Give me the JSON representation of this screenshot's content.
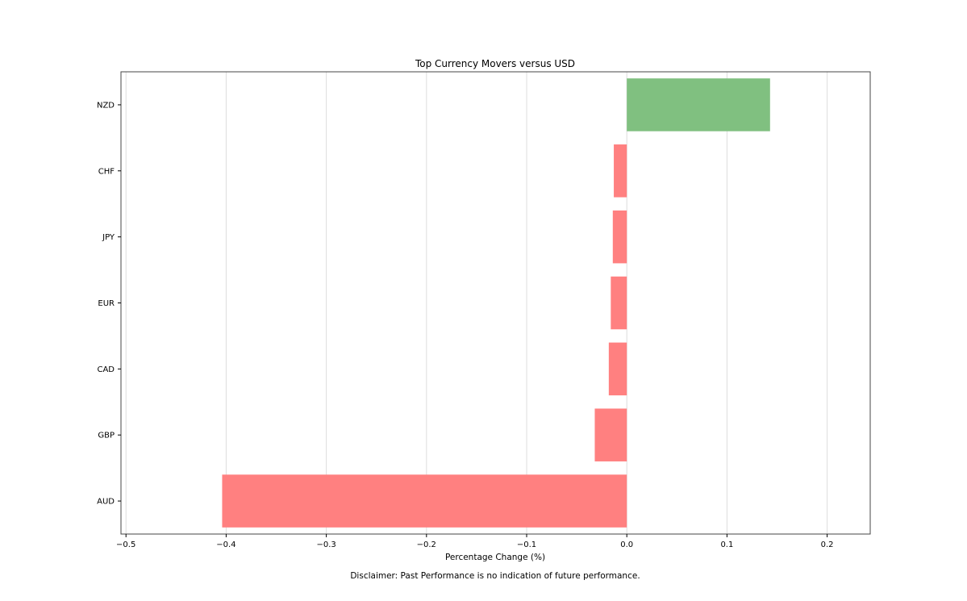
{
  "chart_data": {
    "type": "bar",
    "orientation": "horizontal",
    "title": "Top Currency Movers versus USD",
    "xlabel": "Percentage Change (%)",
    "ylabel": "",
    "categories": [
      "NZD",
      "CHF",
      "JPY",
      "EUR",
      "CAD",
      "GBP",
      "AUD"
    ],
    "values": [
      0.143,
      -0.013,
      -0.014,
      -0.016,
      -0.018,
      -0.032,
      -0.404
    ],
    "xlim": [
      -0.505,
      0.243
    ],
    "xticks": [
      -0.5,
      -0.4,
      -0.3,
      -0.2,
      -0.1,
      0.0,
      0.1,
      0.2
    ],
    "xtick_labels": [
      "−0.5",
      "−0.4",
      "−0.3",
      "−0.2",
      "−0.1",
      "0.0",
      "0.1",
      "0.2"
    ],
    "grid": "vertical",
    "colors": {
      "positive": "#80c080",
      "negative": "#ff8080",
      "grid": "#dddddd",
      "axes": "#444444"
    },
    "footnote": "Disclaimer: Past Performance is no indication of future performance."
  }
}
